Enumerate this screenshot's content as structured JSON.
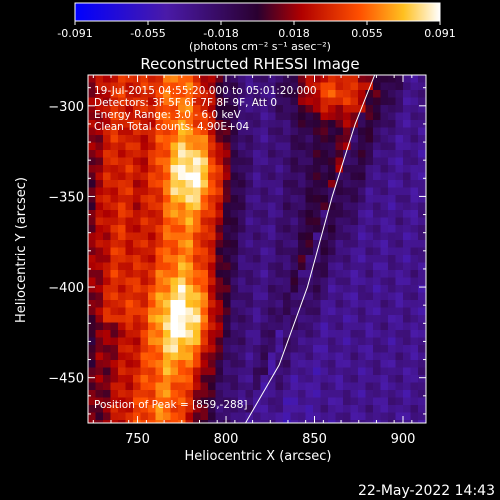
{
  "colorbar": {
    "ticks": [
      "-0.091",
      "-0.055",
      "-0.018",
      "0.018",
      "0.055",
      "0.091"
    ],
    "units": "(photons cm⁻² s⁻¹ asec⁻²)"
  },
  "chart_data": {
    "type": "heatmap",
    "title": "Reconstructed RHESSI Image",
    "xlabel": "Heliocentric X (arcsec)",
    "ylabel": "Heliocentric Y (arcsec)",
    "xlim": [
      722,
      913
    ],
    "ylim": [
      -475,
      -283
    ],
    "xticks": [
      750,
      800,
      850,
      900
    ],
    "yticks": [
      -300,
      -350,
      -400,
      -450
    ],
    "colorbar_range": [
      -0.091,
      0.091
    ],
    "annotations": [
      "19-Jul-2015 04:55:20.000 to 05:01:20.000",
      "Detectors: 3F 5F 6F 7F 8F 9F, Att 0",
      "Energy Range: 3.0 - 6.0 keV",
      "Clean    Total counts: 4.90E+04"
    ],
    "peak_label": "Position of Peak = [859,-288]",
    "limb_curve": [
      [
        811,
        -475
      ],
      [
        830,
        -443
      ],
      [
        846,
        -400
      ],
      [
        860,
        -350
      ],
      [
        873,
        -310
      ],
      [
        884,
        -283
      ]
    ]
  },
  "footer": {
    "timestamp": "22-May-2022 14:43"
  },
  "colors": {
    "limb": "#ffffff",
    "background": "#000000"
  }
}
